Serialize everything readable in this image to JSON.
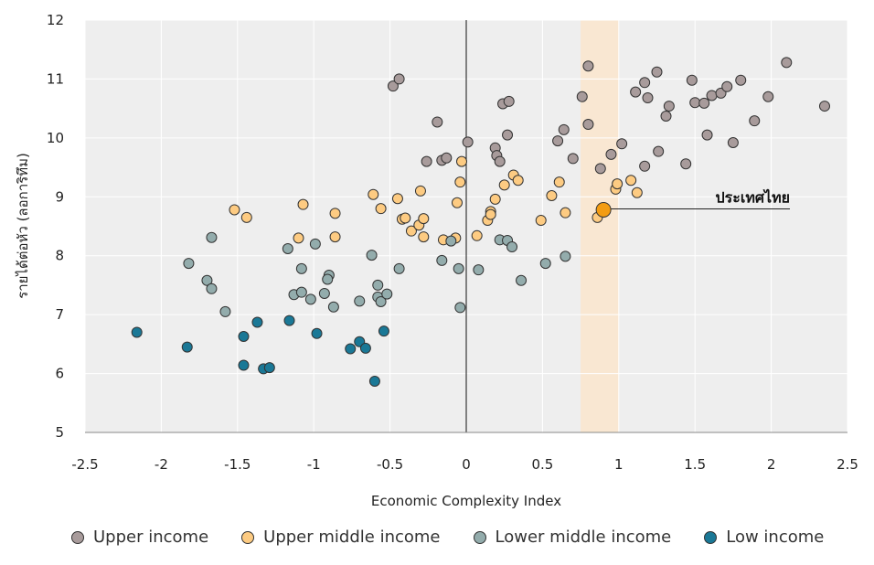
{
  "chart_data": {
    "type": "scatter",
    "xlabel": "Economic Complexity Index",
    "ylabel": "รายได้ต่อหัว (ลอการิทึม)",
    "xlim": [
      -2.5,
      2.5
    ],
    "ylim": [
      5,
      12
    ],
    "xticks": [
      "-2.5",
      "-2",
      "-1.5",
      "-1",
      "-0.5",
      "0",
      "0.5",
      "1",
      "1.5",
      "2",
      "2.5"
    ],
    "yticks": [
      "5",
      "6",
      "7",
      "8",
      "9",
      "10",
      "11",
      "12"
    ],
    "grid": true,
    "legend": "bottom",
    "highlight_band": [
      0.75,
      1.0
    ],
    "annotation": {
      "label": "ประเทศไทย",
      "x": 0.9,
      "y": 8.78,
      "color": "#F39C12"
    },
    "series": [
      {
        "name": "Upper income",
        "color": "#A89B9B",
        "points": [
          [
            -0.48,
            10.88
          ],
          [
            -0.44,
            11.0
          ],
          [
            -0.19,
            10.27
          ],
          [
            -0.26,
            9.6
          ],
          [
            -0.16,
            9.62
          ],
          [
            -0.13,
            9.66
          ],
          [
            0.01,
            9.93
          ],
          [
            0.19,
            9.83
          ],
          [
            0.2,
            9.7
          ],
          [
            0.22,
            9.6
          ],
          [
            0.24,
            10.58
          ],
          [
            0.28,
            10.62
          ],
          [
            0.27,
            10.05
          ],
          [
            0.6,
            9.95
          ],
          [
            0.64,
            10.14
          ],
          [
            0.7,
            9.65
          ],
          [
            0.76,
            10.7
          ],
          [
            0.8,
            11.22
          ],
          [
            0.8,
            10.23
          ],
          [
            0.88,
            9.48
          ],
          [
            0.95,
            9.72
          ],
          [
            1.02,
            9.9
          ],
          [
            1.11,
            10.78
          ],
          [
            1.17,
            10.94
          ],
          [
            1.19,
            10.68
          ],
          [
            1.25,
            11.12
          ],
          [
            1.26,
            9.77
          ],
          [
            1.31,
            10.37
          ],
          [
            1.33,
            10.54
          ],
          [
            1.44,
            9.56
          ],
          [
            1.48,
            10.98
          ],
          [
            1.5,
            10.6
          ],
          [
            1.56,
            10.59
          ],
          [
            1.58,
            10.05
          ],
          [
            1.61,
            10.72
          ],
          [
            1.67,
            10.76
          ],
          [
            1.71,
            10.87
          ],
          [
            1.75,
            9.92
          ],
          [
            1.8,
            10.98
          ],
          [
            1.89,
            10.29
          ],
          [
            1.98,
            10.7
          ],
          [
            2.1,
            11.28
          ],
          [
            2.35,
            10.54
          ],
          [
            1.17,
            9.52
          ]
        ]
      },
      {
        "name": "Upper middle income",
        "color": "#FDCB82",
        "points": [
          [
            -1.52,
            8.78
          ],
          [
            -1.44,
            8.65
          ],
          [
            -1.1,
            8.3
          ],
          [
            -1.07,
            8.87
          ],
          [
            -0.86,
            8.72
          ],
          [
            -0.86,
            8.32
          ],
          [
            -0.61,
            9.04
          ],
          [
            -0.56,
            8.8
          ],
          [
            -0.45,
            8.97
          ],
          [
            -0.42,
            8.62
          ],
          [
            -0.4,
            8.64
          ],
          [
            -0.36,
            8.42
          ],
          [
            -0.31,
            8.52
          ],
          [
            -0.3,
            9.1
          ],
          [
            -0.28,
            8.63
          ],
          [
            -0.28,
            8.32
          ],
          [
            -0.15,
            8.27
          ],
          [
            -0.07,
            8.3
          ],
          [
            -0.06,
            8.9
          ],
          [
            -0.04,
            9.25
          ],
          [
            -0.03,
            9.6
          ],
          [
            0.07,
            8.34
          ],
          [
            0.14,
            8.6
          ],
          [
            0.16,
            8.75
          ],
          [
            0.16,
            8.7
          ],
          [
            0.19,
            8.96
          ],
          [
            0.25,
            9.2
          ],
          [
            0.31,
            9.37
          ],
          [
            0.34,
            9.28
          ],
          [
            0.49,
            8.6
          ],
          [
            0.56,
            9.02
          ],
          [
            0.61,
            9.25
          ],
          [
            0.65,
            8.73
          ],
          [
            0.86,
            8.65
          ],
          [
            0.98,
            9.13
          ],
          [
            0.99,
            9.22
          ],
          [
            1.08,
            9.28
          ],
          [
            1.12,
            9.07
          ]
        ]
      },
      {
        "name": "Lower middle income",
        "color": "#93ACAC",
        "points": [
          [
            -1.82,
            7.87
          ],
          [
            -1.7,
            7.58
          ],
          [
            -1.67,
            8.31
          ],
          [
            -1.67,
            7.44
          ],
          [
            -1.58,
            7.05
          ],
          [
            -1.17,
            8.12
          ],
          [
            -1.13,
            7.34
          ],
          [
            -1.08,
            7.38
          ],
          [
            -1.08,
            7.78
          ],
          [
            -1.02,
            7.26
          ],
          [
            -0.99,
            8.2
          ],
          [
            -0.93,
            7.36
          ],
          [
            -0.9,
            7.67
          ],
          [
            -0.91,
            7.6
          ],
          [
            -0.87,
            7.13
          ],
          [
            -0.7,
            7.23
          ],
          [
            -0.62,
            8.01
          ],
          [
            -0.58,
            7.5
          ],
          [
            -0.58,
            7.3
          ],
          [
            -0.56,
            7.22
          ],
          [
            -0.52,
            7.35
          ],
          [
            -0.44,
            7.78
          ],
          [
            -0.16,
            7.92
          ],
          [
            -0.1,
            8.25
          ],
          [
            -0.05,
            7.78
          ],
          [
            -0.04,
            7.12
          ],
          [
            0.08,
            7.76
          ],
          [
            0.22,
            8.27
          ],
          [
            0.27,
            8.26
          ],
          [
            0.3,
            8.15
          ],
          [
            0.36,
            7.58
          ],
          [
            0.52,
            7.87
          ],
          [
            0.65,
            7.99
          ]
        ]
      },
      {
        "name": "Low income",
        "color": "#1A7896",
        "points": [
          [
            -2.16,
            6.7
          ],
          [
            -1.83,
            6.45
          ],
          [
            -1.46,
            6.63
          ],
          [
            -1.46,
            6.14
          ],
          [
            -1.37,
            6.87
          ],
          [
            -1.33,
            6.08
          ],
          [
            -1.29,
            6.1
          ],
          [
            -1.16,
            6.9
          ],
          [
            -0.98,
            6.68
          ],
          [
            -0.76,
            6.42
          ],
          [
            -0.7,
            6.54
          ],
          [
            -0.66,
            6.43
          ],
          [
            -0.54,
            6.72
          ],
          [
            -0.6,
            5.87
          ]
        ]
      }
    ]
  }
}
